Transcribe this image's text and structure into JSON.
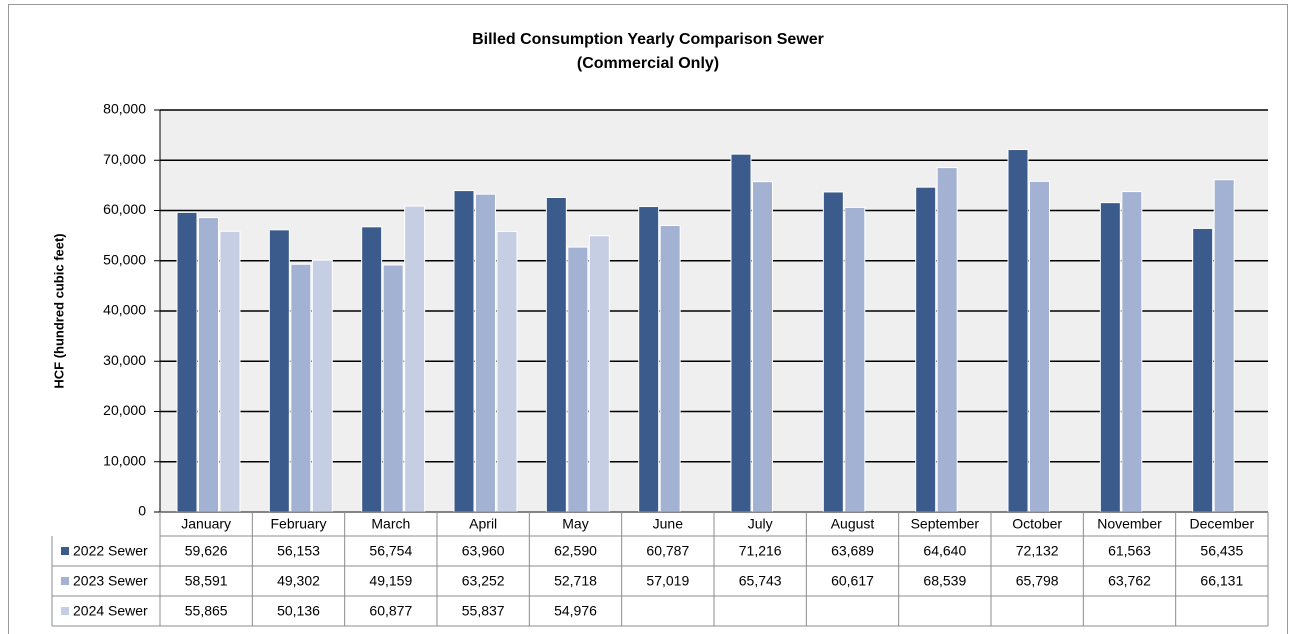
{
  "chart_data": {
    "type": "bar",
    "title": "Billed Consumption Yearly Comparison Sewer",
    "subtitle": "(Commercial Only)",
    "y_label": "HCF (hundred cubic feet)",
    "categories": [
      "January",
      "February",
      "March",
      "April",
      "May",
      "June",
      "July",
      "August",
      "September",
      "October",
      "November",
      "December"
    ],
    "series": [
      {
        "name": "2022 Sewer",
        "color": "#3b5b8c",
        "values": [
          59626,
          56153,
          56754,
          63960,
          62590,
          60787,
          71216,
          63689,
          64640,
          72132,
          61563,
          56435
        ],
        "value_labels": [
          "59,626",
          "56,153",
          "56,754",
          "63,960",
          "62,590",
          "60,787",
          "71,216",
          "63,689",
          "64,640",
          "72,132",
          "61,563",
          "56,435"
        ]
      },
      {
        "name": "2023 Sewer",
        "color": "#a3b2d2",
        "values": [
          58591,
          49302,
          49159,
          63252,
          52718,
          57019,
          65743,
          60617,
          68539,
          65798,
          63762,
          66131
        ],
        "value_labels": [
          "58,591",
          "49,302",
          "49,159",
          "63,252",
          "52,718",
          "57,019",
          "65,743",
          "60,617",
          "68,539",
          "65,798",
          "63,762",
          "66,131"
        ]
      },
      {
        "name": "2024 Sewer",
        "color": "#c6cee3",
        "values": [
          55865,
          50136,
          60877,
          55837,
          54976,
          null,
          null,
          null,
          null,
          null,
          null,
          null
        ],
        "value_labels": [
          "55,865",
          "50,136",
          "60,877",
          "55,837",
          "54,976",
          null,
          null,
          null,
          null,
          null,
          null,
          null
        ]
      }
    ],
    "ylim": [
      0,
      80000
    ],
    "yticks": [
      0,
      {
        "value": 10000,
        "label": "10,000"
      },
      {
        "value": 20000,
        "label": "20,000"
      },
      {
        "value": 30000,
        "label": "30,000"
      },
      {
        "value": 40000,
        "label": "40,000"
      },
      {
        "value": 50000,
        "label": "50,000"
      },
      {
        "value": 60000,
        "label": "60,000"
      },
      {
        "value": 70000,
        "label": "70,000"
      },
      {
        "value": 80000,
        "label": "80,000"
      }
    ],
    "grid": true
  }
}
